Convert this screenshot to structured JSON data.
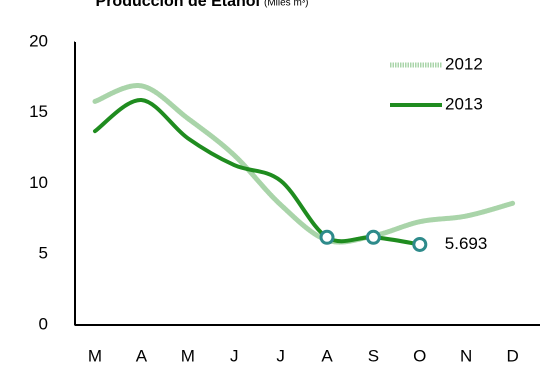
{
  "chart_data": {
    "type": "line",
    "title": "Producción de Etanol",
    "subtitle": "(Miles m³)",
    "categories": [
      "M",
      "A",
      "M",
      "J",
      "J",
      "A",
      "S",
      "O",
      "N",
      "D"
    ],
    "series": [
      {
        "name": "2012",
        "color": "#a9d4a9",
        "values": [
          15.8,
          16.9,
          14.6,
          12,
          8.5,
          6,
          6.3,
          7.3,
          7.7,
          8.6
        ]
      },
      {
        "name": "2013",
        "color": "#1f8c1f",
        "values": [
          13.7,
          15.9,
          13.2,
          11.3,
          10.2,
          6.2,
          6.2,
          5.693,
          null,
          null
        ]
      }
    ],
    "ylim": [
      0,
      20
    ],
    "yticks": [
      0,
      5,
      10,
      15,
      20
    ],
    "legend": "upper right",
    "grid": false
  }
}
